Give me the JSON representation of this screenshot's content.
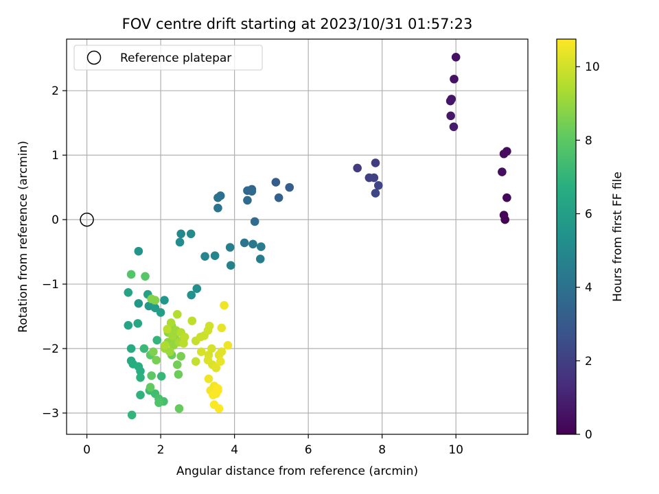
{
  "chart_data": {
    "type": "scatter",
    "title": "FOV centre drift starting at 2023/10/31 01:57:23",
    "xlabel": "Angular distance from reference (arcmin)",
    "ylabel": "Rotation from reference (arcmin)",
    "xlim": [
      -0.55,
      11.95
    ],
    "ylim": [
      -3.33,
      2.8
    ],
    "xticks": [
      0,
      2,
      4,
      6,
      8,
      10
    ],
    "yticks": [
      -3,
      -2,
      -1,
      0,
      1,
      2
    ],
    "grid": true,
    "legend": {
      "placement": "top-left",
      "entries": [
        "Reference platepar"
      ]
    },
    "reference_point": {
      "x": 0,
      "y": 0
    },
    "colorbar": {
      "label": "Hours from first FF file",
      "colormap": "viridis",
      "range": [
        0,
        10.75
      ],
      "ticks": [
        0,
        2,
        4,
        6,
        8,
        10
      ]
    },
    "colors": {
      "viridis_stops": [
        "#440154",
        "#472d7b",
        "#3b528b",
        "#2c728e",
        "#21918c",
        "#28ae80",
        "#5ec962",
        "#addc30",
        "#fde725"
      ],
      "grid": "#b0b0b0",
      "axis": "#000000"
    },
    "points": [
      {
        "x": 10.0,
        "y": 2.52,
        "c": 0.45
      },
      {
        "x": 9.95,
        "y": 2.18,
        "c": 0.5
      },
      {
        "x": 9.88,
        "y": 1.87,
        "c": 0.6
      },
      {
        "x": 9.85,
        "y": 1.84,
        "c": 0.65
      },
      {
        "x": 9.86,
        "y": 1.61,
        "c": 0.7
      },
      {
        "x": 9.94,
        "y": 1.44,
        "c": 0.8
      },
      {
        "x": 11.38,
        "y": 1.06,
        "c": 0.3
      },
      {
        "x": 11.3,
        "y": 1.02,
        "c": 0.35
      },
      {
        "x": 11.25,
        "y": 0.74,
        "c": 0.4
      },
      {
        "x": 11.38,
        "y": 0.34,
        "c": 0.2
      },
      {
        "x": 11.3,
        "y": 0.07,
        "c": 0.1
      },
      {
        "x": 11.33,
        "y": 0.0,
        "c": 0.05
      },
      {
        "x": 7.33,
        "y": 0.8,
        "c": 1.8
      },
      {
        "x": 7.82,
        "y": 0.88,
        "c": 1.9
      },
      {
        "x": 7.65,
        "y": 0.65,
        "c": 2.0
      },
      {
        "x": 7.78,
        "y": 0.65,
        "c": 2.1
      },
      {
        "x": 7.9,
        "y": 0.53,
        "c": 2.2
      },
      {
        "x": 7.82,
        "y": 0.41,
        "c": 2.3
      },
      {
        "x": 5.12,
        "y": 0.58,
        "c": 3.1
      },
      {
        "x": 5.49,
        "y": 0.5,
        "c": 3.2
      },
      {
        "x": 5.2,
        "y": 0.34,
        "c": 3.3
      },
      {
        "x": 4.47,
        "y": 0.47,
        "c": 3.5
      },
      {
        "x": 4.35,
        "y": 0.45,
        "c": 3.6
      },
      {
        "x": 4.47,
        "y": 0.44,
        "c": 3.6
      },
      {
        "x": 4.35,
        "y": 0.3,
        "c": 3.7
      },
      {
        "x": 4.55,
        "y": -0.03,
        "c": 3.8
      },
      {
        "x": 3.62,
        "y": 0.37,
        "c": 3.9
      },
      {
        "x": 3.55,
        "y": 0.34,
        "c": 4.0
      },
      {
        "x": 3.55,
        "y": 0.18,
        "c": 4.1
      },
      {
        "x": 4.27,
        "y": -0.36,
        "c": 4.2
      },
      {
        "x": 4.5,
        "y": -0.38,
        "c": 4.3
      },
      {
        "x": 4.72,
        "y": -0.42,
        "c": 4.4
      },
      {
        "x": 4.7,
        "y": -0.61,
        "c": 4.5
      },
      {
        "x": 3.88,
        "y": -0.43,
        "c": 4.6
      },
      {
        "x": 3.9,
        "y": -0.71,
        "c": 4.7
      },
      {
        "x": 3.47,
        "y": -0.56,
        "c": 4.8
      },
      {
        "x": 3.2,
        "y": -0.57,
        "c": 4.9
      },
      {
        "x": 2.55,
        "y": -0.22,
        "c": 5.0
      },
      {
        "x": 2.82,
        "y": -0.22,
        "c": 5.1
      },
      {
        "x": 2.52,
        "y": -0.35,
        "c": 5.2
      },
      {
        "x": 2.98,
        "y": -1.07,
        "c": 5.3
      },
      {
        "x": 2.83,
        "y": -1.17,
        "c": 5.4
      },
      {
        "x": 1.4,
        "y": -0.49,
        "c": 5.5
      },
      {
        "x": 2.1,
        "y": -1.25,
        "c": 5.6
      },
      {
        "x": 1.4,
        "y": -1.3,
        "c": 5.7
      },
      {
        "x": 1.68,
        "y": -1.34,
        "c": 5.8
      },
      {
        "x": 1.85,
        "y": -1.37,
        "c": 5.9
      },
      {
        "x": 2.0,
        "y": -1.44,
        "c": 6.0
      },
      {
        "x": 1.65,
        "y": -1.16,
        "c": 6.1
      },
      {
        "x": 1.12,
        "y": -1.13,
        "c": 6.2
      },
      {
        "x": 1.12,
        "y": -1.64,
        "c": 6.3
      },
      {
        "x": 1.38,
        "y": -1.61,
        "c": 6.4
      },
      {
        "x": 1.2,
        "y": -2.0,
        "c": 6.5
      },
      {
        "x": 1.2,
        "y": -2.19,
        "c": 6.5
      },
      {
        "x": 1.25,
        "y": -2.24,
        "c": 6.6
      },
      {
        "x": 1.4,
        "y": -2.28,
        "c": 6.7
      },
      {
        "x": 1.45,
        "y": -2.35,
        "c": 6.7
      },
      {
        "x": 1.45,
        "y": -2.45,
        "c": 6.8
      },
      {
        "x": 1.45,
        "y": -2.72,
        "c": 6.9
      },
      {
        "x": 1.22,
        "y": -3.03,
        "c": 7.0
      },
      {
        "x": 1.9,
        "y": -1.87,
        "c": 7.0
      },
      {
        "x": 2.02,
        "y": -2.43,
        "c": 7.1
      },
      {
        "x": 1.55,
        "y": -2.0,
        "c": 7.2
      },
      {
        "x": 1.7,
        "y": -2.65,
        "c": 7.3
      },
      {
        "x": 1.85,
        "y": -2.7,
        "c": 7.4
      },
      {
        "x": 2.08,
        "y": -2.82,
        "c": 7.5
      },
      {
        "x": 1.95,
        "y": -2.78,
        "c": 7.6
      },
      {
        "x": 1.95,
        "y": -2.84,
        "c": 7.7
      },
      {
        "x": 1.2,
        "y": -0.85,
        "c": 7.8
      },
      {
        "x": 1.58,
        "y": -0.88,
        "c": 7.9
      },
      {
        "x": 1.72,
        "y": -2.1,
        "c": 8.0
      },
      {
        "x": 1.75,
        "y": -2.42,
        "c": 8.0
      },
      {
        "x": 1.72,
        "y": -2.6,
        "c": 8.1
      },
      {
        "x": 2.5,
        "y": -2.93,
        "c": 8.2
      },
      {
        "x": 2.48,
        "y": -2.4,
        "c": 8.3
      },
      {
        "x": 2.3,
        "y": -2.1,
        "c": 8.3
      },
      {
        "x": 2.45,
        "y": -2.25,
        "c": 8.4
      },
      {
        "x": 2.55,
        "y": -2.12,
        "c": 8.5
      },
      {
        "x": 1.88,
        "y": -2.18,
        "c": 8.5
      },
      {
        "x": 1.8,
        "y": -2.05,
        "c": 8.6
      },
      {
        "x": 1.85,
        "y": -1.25,
        "c": 8.7
      },
      {
        "x": 1.75,
        "y": -1.23,
        "c": 8.7
      },
      {
        "x": 2.2,
        "y": -1.75,
        "c": 8.8
      },
      {
        "x": 2.3,
        "y": -1.65,
        "c": 8.9
      },
      {
        "x": 2.2,
        "y": -1.9,
        "c": 8.9
      },
      {
        "x": 2.35,
        "y": -1.95,
        "c": 9.0
      },
      {
        "x": 2.4,
        "y": -1.85,
        "c": 9.0
      },
      {
        "x": 2.12,
        "y": -2.0,
        "c": 9.1
      },
      {
        "x": 2.25,
        "y": -2.05,
        "c": 9.1
      },
      {
        "x": 2.32,
        "y": -1.8,
        "c": 9.2
      },
      {
        "x": 2.42,
        "y": -1.72,
        "c": 9.2
      },
      {
        "x": 2.5,
        "y": -1.9,
        "c": 9.3
      },
      {
        "x": 2.62,
        "y": -1.85,
        "c": 9.3
      },
      {
        "x": 2.12,
        "y": -1.95,
        "c": 9.4
      },
      {
        "x": 2.28,
        "y": -1.6,
        "c": 9.4
      },
      {
        "x": 2.45,
        "y": -1.47,
        "c": 9.5
      },
      {
        "x": 2.55,
        "y": -1.75,
        "c": 9.5
      },
      {
        "x": 2.18,
        "y": -1.7,
        "c": 9.6
      },
      {
        "x": 2.62,
        "y": -1.92,
        "c": 9.6
      },
      {
        "x": 2.65,
        "y": -1.82,
        "c": 9.7
      },
      {
        "x": 2.85,
        "y": -1.57,
        "c": 9.7
      },
      {
        "x": 2.95,
        "y": -1.88,
        "c": 9.8
      },
      {
        "x": 2.95,
        "y": -2.2,
        "c": 9.8
      },
      {
        "x": 3.08,
        "y": -1.82,
        "c": 9.9
      },
      {
        "x": 3.18,
        "y": -1.8,
        "c": 9.9
      },
      {
        "x": 3.28,
        "y": -1.72,
        "c": 10.0
      },
      {
        "x": 3.32,
        "y": -1.65,
        "c": 10.0
      },
      {
        "x": 3.38,
        "y": -2.0,
        "c": 10.1
      },
      {
        "x": 3.3,
        "y": -2.1,
        "c": 10.1
      },
      {
        "x": 3.28,
        "y": -2.18,
        "c": 10.2
      },
      {
        "x": 3.4,
        "y": -2.25,
        "c": 10.2
      },
      {
        "x": 3.5,
        "y": -2.3,
        "c": 10.3
      },
      {
        "x": 3.58,
        "y": -2.1,
        "c": 10.3
      },
      {
        "x": 3.65,
        "y": -2.05,
        "c": 10.3
      },
      {
        "x": 3.62,
        "y": -2.2,
        "c": 10.4
      },
      {
        "x": 3.65,
        "y": -1.68,
        "c": 10.4
      },
      {
        "x": 3.72,
        "y": -1.33,
        "c": 10.5
      },
      {
        "x": 3.82,
        "y": -1.95,
        "c": 10.5
      },
      {
        "x": 3.1,
        "y": -2.05,
        "c": 10.1
      },
      {
        "x": 3.3,
        "y": -2.47,
        "c": 10.5
      },
      {
        "x": 3.35,
        "y": -2.65,
        "c": 10.6
      },
      {
        "x": 3.45,
        "y": -2.58,
        "c": 10.6
      },
      {
        "x": 3.55,
        "y": -2.65,
        "c": 10.7
      },
      {
        "x": 3.42,
        "y": -2.72,
        "c": 10.7
      },
      {
        "x": 3.5,
        "y": -2.7,
        "c": 10.7
      },
      {
        "x": 3.45,
        "y": -2.87,
        "c": 10.7
      },
      {
        "x": 3.58,
        "y": -2.93,
        "c": 10.75
      },
      {
        "x": 3.55,
        "y": -2.62,
        "c": 10.75
      }
    ]
  }
}
